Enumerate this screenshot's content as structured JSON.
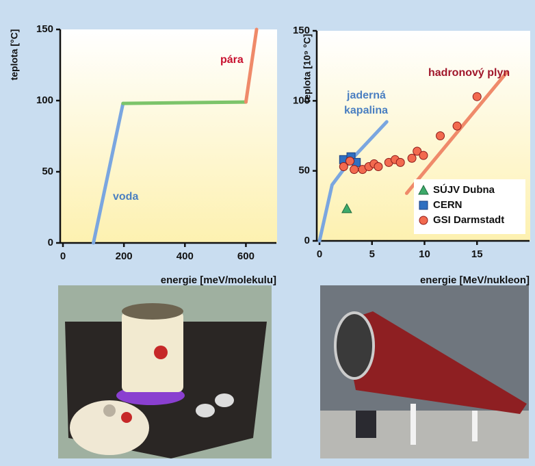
{
  "chart_data": [
    {
      "type": "line",
      "ylabel": "teplota [°C]",
      "xlabel": "energie [meV/molekulu]",
      "xlim": [
        0,
        700
      ],
      "xticks": [
        0,
        200,
        400,
        600
      ],
      "ylim": [
        0,
        150
      ],
      "yticks": [
        0,
        50,
        100,
        150
      ],
      "series": [
        {
          "color": "#7aa6e0",
          "x": [
            100,
            197
          ],
          "y": [
            0,
            98
          ]
        },
        {
          "color": "#7cc46a",
          "x": [
            197,
            600
          ],
          "y": [
            98,
            99
          ]
        },
        {
          "color": "#ef8a6a",
          "x": [
            600,
            635
          ],
          "y": [
            99,
            150
          ]
        }
      ],
      "annotations": [
        {
          "text": "pára",
          "color": "#c8102e"
        },
        {
          "text": "voda",
          "color": "#4a7fc1"
        }
      ]
    },
    {
      "type": "scatter",
      "ylabel": "teplota [10⁹ °C]",
      "xlabel": "energie [MeV/nukleon]",
      "xlim": [
        0,
        20
      ],
      "xticks": [
        0,
        5,
        10,
        15
      ],
      "ylim": [
        0,
        150
      ],
      "yticks": [
        0,
        50,
        100,
        150
      ],
      "series": [
        {
          "style": "line",
          "color": "#7aa6e0",
          "x": [
            0,
            1.2,
            2.9,
            6.4
          ],
          "y": [
            0,
            40,
            57,
            85
          ]
        },
        {
          "style": "line",
          "color": "#ef8a6a",
          "x": [
            8.3,
            17.8
          ],
          "y": [
            34,
            120
          ]
        },
        {
          "name": "SÚJV Dubna",
          "marker": "triangle",
          "color": "#3daa6a",
          "x": [
            2.6
          ],
          "y": [
            23
          ]
        },
        {
          "name": "CERN",
          "marker": "square",
          "color": "#2f6fc0",
          "x": [
            2.3,
            3.0,
            3.5
          ],
          "y": [
            58,
            60,
            56
          ]
        },
        {
          "name": "GSI Darmstadt",
          "marker": "circle",
          "color": "#f26a4f",
          "x": [
            2.3,
            2.9,
            3.3,
            4.1,
            4.7,
            5.2,
            5.6,
            6.6,
            7.2,
            7.7,
            8.8,
            9.3,
            9.9,
            11.5,
            13.1,
            15.0
          ],
          "y": [
            53,
            57,
            51,
            51,
            53,
            55,
            53,
            56,
            58,
            56,
            59,
            64,
            61,
            75,
            82,
            103
          ]
        }
      ],
      "annotations": [
        {
          "text": "jaderná",
          "color": "#4a7fc1"
        },
        {
          "text": "kapalina",
          "color": "#4a7fc1"
        },
        {
          "text": "hadronový plyn",
          "color": "#a0162a"
        }
      ]
    }
  ]
}
